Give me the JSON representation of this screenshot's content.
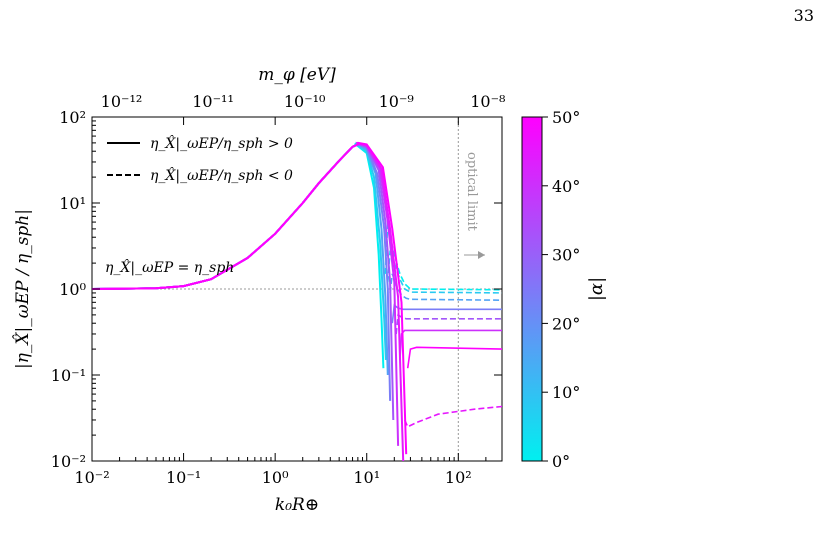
{
  "page_number": "33",
  "chart_data": {
    "type": "line",
    "x_axis": {
      "label": "k₀R⊕",
      "scale": "log",
      "range": [
        0.01,
        300
      ],
      "ticks": [
        0.01,
        0.1,
        1,
        10,
        100
      ],
      "tick_labels": [
        "10⁻²",
        "10⁻¹",
        "10⁰",
        "10¹",
        "10²"
      ]
    },
    "top_axis": {
      "label": "m_φ [eV]",
      "tick_labels": [
        "10⁻¹²",
        "10⁻¹¹",
        "10⁻¹⁰",
        "10⁻⁹",
        "10⁻⁸"
      ],
      "tick_k": [
        0.021,
        0.21,
        2.1,
        21,
        210
      ]
    },
    "y_axis": {
      "label": "|η_X̂|_ωEP / η_sph|",
      "scale": "log",
      "range": [
        0.01,
        100
      ],
      "ticks": [
        0.01,
        0.1,
        1,
        10,
        100
      ],
      "tick_labels": [
        "10⁻²",
        "10⁻¹",
        "10⁰",
        "10¹",
        "10²"
      ]
    },
    "colorbar": {
      "label": "|α|",
      "range": [
        0,
        50
      ],
      "ticks": [
        "0°",
        "10°",
        "20°",
        "30°",
        "40°",
        "50°"
      ],
      "color_low": "#00f0f0",
      "color_high": "#ff00ff"
    },
    "legend": {
      "placement": "top-left",
      "entries": [
        {
          "style": "solid",
          "label": "η_X̂|_ωEP/η_sph > 0"
        },
        {
          "style": "dashed",
          "label": "η_X̂|_ωEP/η_sph < 0"
        }
      ]
    },
    "annotations": {
      "unity_label": "η_X̂|_ωEP = η_sph",
      "optical_label": "optical limit",
      "optical_k": 100
    },
    "common_curve": [
      [
        0.01,
        1.0
      ],
      [
        0.05,
        1.02
      ],
      [
        0.1,
        1.08
      ],
      [
        0.2,
        1.3
      ],
      [
        0.5,
        2.3
      ],
      [
        1,
        4.4
      ],
      [
        2,
        10
      ],
      [
        3,
        17
      ],
      [
        5,
        31
      ],
      [
        7,
        45
      ],
      [
        8,
        48
      ]
    ],
    "series": [
      {
        "alpha": 0,
        "peak": [
          7.4,
          49
        ],
        "drop": [
          [
            10,
            38
          ],
          [
            12,
            15
          ],
          [
            13.5,
            2.5
          ],
          [
            14.5,
            0.45
          ],
          [
            15.2,
            0.12
          ]
        ],
        "tail_dashed": [
          [
            16,
            1.5
          ],
          [
            17,
            6
          ],
          [
            18,
            4
          ],
          [
            20,
            2.5
          ],
          [
            23,
            1.5
          ],
          [
            26,
            1.15
          ],
          [
            30,
            1.0
          ],
          [
            300,
            0.98
          ]
        ]
      },
      {
        "alpha": 8,
        "peak": [
          7.5,
          49
        ],
        "drop": [
          [
            10,
            40
          ],
          [
            12,
            20
          ],
          [
            14,
            3.5
          ],
          [
            15.5,
            0.45
          ],
          [
            16.2,
            0.15
          ]
        ],
        "tail_dashed": [
          [
            17,
            1.2
          ],
          [
            18,
            2.8
          ],
          [
            20,
            2.0
          ],
          [
            23,
            1.3
          ],
          [
            26,
            1.0
          ],
          [
            30,
            0.92
          ],
          [
            300,
            0.9
          ]
        ]
      },
      {
        "alpha": 16,
        "peak": [
          7.6,
          49
        ],
        "drop": [
          [
            10,
            42
          ],
          [
            12.5,
            22
          ],
          [
            14.5,
            5
          ],
          [
            16,
            0.8
          ],
          [
            17,
            0.1
          ]
        ],
        "tail_dashed": [
          [
            18,
            0.9
          ],
          [
            19,
            1.5
          ],
          [
            21,
            1.1
          ],
          [
            24,
            0.85
          ],
          [
            27,
            0.78
          ],
          [
            30,
            0.76
          ],
          [
            300,
            0.74
          ]
        ]
      },
      {
        "alpha": 24,
        "peak": [
          7.7,
          49
        ],
        "drop": [
          [
            10,
            44
          ],
          [
            13,
            22
          ],
          [
            15.5,
            5
          ],
          [
            17,
            1.0
          ],
          [
            18,
            0.05
          ]
        ],
        "tail_solid": [
          [
            19,
            0.4
          ],
          [
            20,
            0.65
          ],
          [
            22,
            0.6
          ],
          [
            25,
            0.58
          ],
          [
            300,
            0.58
          ]
        ]
      },
      {
        "alpha": 32,
        "peak": [
          7.8,
          49.5
        ],
        "drop": [
          [
            10,
            45
          ],
          [
            13.5,
            24
          ],
          [
            16,
            6
          ],
          [
            18,
            1.2
          ],
          [
            19.5,
            0.03
          ]
        ],
        "tail_dashed": [
          [
            21,
            0.3
          ],
          [
            22,
            0.5
          ],
          [
            24,
            0.47
          ],
          [
            27,
            0.45
          ],
          [
            300,
            0.45
          ]
        ]
      },
      {
        "alpha": 40,
        "peak": [
          7.9,
          49.5
        ],
        "drop": [
          [
            10,
            46
          ],
          [
            14,
            25
          ],
          [
            17,
            6
          ],
          [
            20,
            1.2
          ],
          [
            22,
            0.015
          ]
        ],
        "tail_solid": [
          [
            23,
            0.15
          ],
          [
            24,
            0.3
          ],
          [
            26,
            0.33
          ],
          [
            30,
            0.33
          ],
          [
            300,
            0.33
          ]
        ]
      },
      {
        "alpha": 45,
        "peak": [
          8.0,
          49.5
        ],
        "drop": [
          [
            10,
            47
          ],
          [
            14.5,
            25
          ],
          [
            18,
            5
          ],
          [
            22,
            0.8
          ],
          [
            25,
            0.01
          ]
        ],
        "tail_dashed": [
          [
            26,
            0.03
          ],
          [
            28,
            0.025
          ],
          [
            35,
            0.028
          ],
          [
            60,
            0.035
          ],
          [
            150,
            0.04
          ],
          [
            300,
            0.043
          ]
        ]
      },
      {
        "alpha": 50,
        "peak": [
          8.1,
          50
        ],
        "drop": [
          [
            10,
            48
          ],
          [
            15,
            26
          ],
          [
            19,
            5
          ],
          [
            24,
            0.7
          ],
          [
            27,
            0.012
          ]
        ],
        "tail_solid": [
          [
            28,
            0.12
          ],
          [
            30,
            0.2
          ],
          [
            35,
            0.21
          ],
          [
            300,
            0.2
          ]
        ]
      }
    ]
  }
}
